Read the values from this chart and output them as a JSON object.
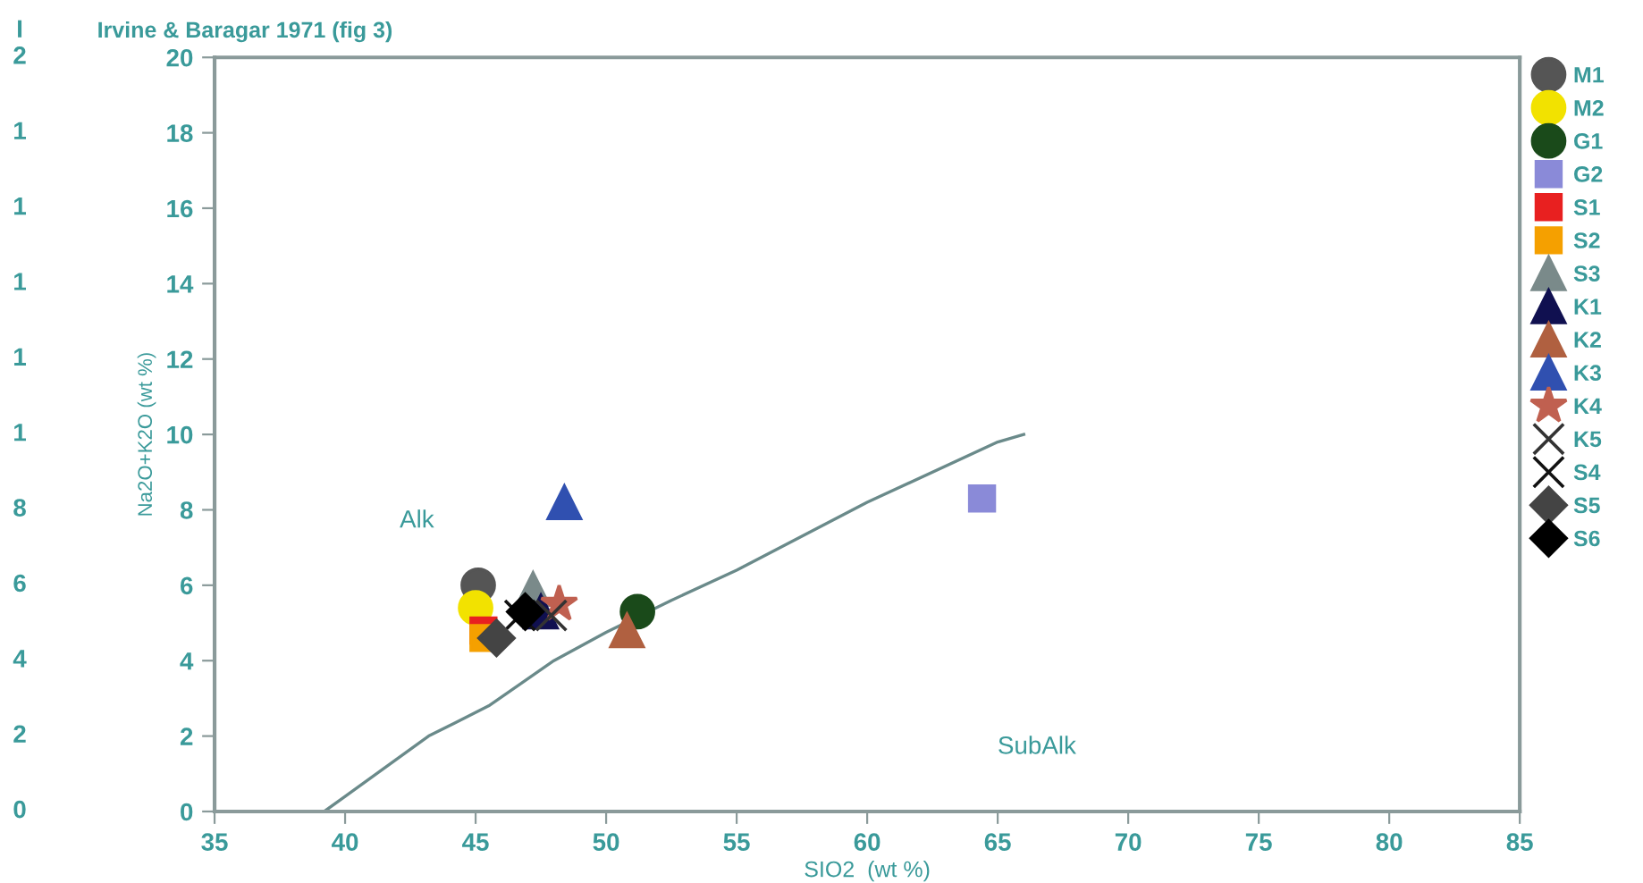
{
  "chart_data": {
    "type": "scatter",
    "title": "Irvine & Baragar 1971 (fig 3)",
    "xlabel": "SIO2  (wt %)",
    "ylabel": "Na2O+K2O (wt %)",
    "xlim": [
      35,
      85
    ],
    "xticks": [
      35,
      40,
      45,
      50,
      55,
      60,
      65,
      70,
      75,
      80,
      85
    ],
    "ylim": [
      0,
      20
    ],
    "yticks": [
      0,
      2,
      4,
      6,
      8,
      10,
      12,
      14,
      16,
      18,
      20
    ],
    "grid": false,
    "legend": "right",
    "annotations": [
      "Alk",
      "SubAlk",
      "I",
      "2",
      "1",
      "1",
      "1",
      "1",
      "1",
      "8",
      "6",
      "4",
      "2",
      "0"
    ],
    "series": [
      {
        "type": "line",
        "color": "#6a8a8a",
        "x": [
          39.2,
          40,
          43.2,
          45.5,
          48,
          50,
          52.5,
          55,
          60,
          65,
          66
        ],
        "values": [
          0,
          0.4,
          2,
          2.8,
          4,
          4.75,
          5.6,
          6.4,
          8.2,
          9.8,
          10
        ],
        "marker": "none",
        "line_style": "solid"
      },
      {
        "name": "M1",
        "color": "#555555",
        "marker": "circle",
        "x": [
          45.1
        ],
        "values": [
          6.0
        ]
      },
      {
        "name": "M2",
        "color": "#f2e200",
        "marker": "circle",
        "x": [
          45.0
        ],
        "values": [
          5.4
        ]
      },
      {
        "name": "G1",
        "color": "#1a4a1a",
        "marker": "circle",
        "x": [
          51.2
        ],
        "values": [
          5.3
        ]
      },
      {
        "name": "G2",
        "color": "#8a8ad8",
        "marker": "square",
        "x": [
          64.4
        ],
        "values": [
          8.3
        ]
      },
      {
        "name": "S1",
        "color": "#e82020",
        "marker": "square",
        "x": [
          45.3
        ],
        "values": [
          4.8
        ]
      },
      {
        "name": "S2",
        "color": "#f5a000",
        "marker": "square",
        "x": [
          45.3
        ],
        "values": [
          4.6
        ]
      },
      {
        "name": "S3",
        "color": "#7a8a8a",
        "marker": "triangle",
        "x": [
          47.2
        ],
        "values": [
          5.9
        ]
      },
      {
        "name": "K1",
        "color": "#101050",
        "marker": "triangle",
        "x": [
          47.5
        ],
        "values": [
          5.3
        ]
      },
      {
        "name": "K2",
        "color": "#b06040",
        "marker": "triangle",
        "x": [
          50.8
        ],
        "values": [
          4.8
        ]
      },
      {
        "name": "K3",
        "color": "#3050b0",
        "marker": "triangle",
        "x": [
          48.4
        ],
        "values": [
          8.2
        ]
      },
      {
        "name": "K4",
        "color": "#c06050",
        "marker": "star",
        "x": [
          48.2
        ],
        "values": [
          5.5
        ]
      },
      {
        "name": "K5",
        "color": "#333333",
        "marker": "cross",
        "x": [
          47.9
        ],
        "values": [
          5.2
        ]
      },
      {
        "name": "S4",
        "color": "#111111",
        "marker": "cross",
        "x": [
          46.7
        ],
        "values": [
          5.2
        ]
      },
      {
        "name": "S5",
        "color": "#444444",
        "marker": "diamond",
        "x": [
          45.8
        ],
        "values": [
          4.6
        ]
      },
      {
        "name": "S6",
        "color": "#000000",
        "marker": "diamond",
        "x": [
          46.9
        ],
        "values": [
          5.3
        ]
      }
    ]
  }
}
